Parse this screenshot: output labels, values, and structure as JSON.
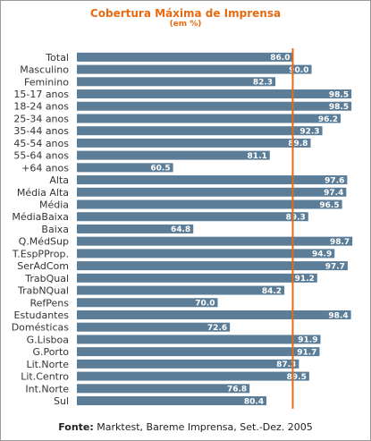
{
  "chart_data": {
    "type": "bar",
    "orientation": "horizontal",
    "title": "Cobertura Máxima de Imprensa",
    "subtitle": "(em %)",
    "categories": [
      "Total",
      "Masculino",
      "Feminino",
      "15-17 anos",
      "18-24 anos",
      "25-34 anos",
      "35-44 anos",
      "45-54 anos",
      "55-64 anos",
      "+64 anos",
      "Alta",
      "Média Alta",
      "Média",
      "MédiaBaixa",
      "Baixa",
      "Q.MédSup",
      "T.EspPProp.",
      "SerAdCom",
      "TrabQual",
      "TrabNQual",
      "RefPens",
      "Estudantes",
      "Domésticas",
      "G.Lisboa",
      "G.Porto",
      "Lit.Norte",
      "Lit.Centro",
      "Int.Norte",
      "Sul"
    ],
    "values": [
      86.0,
      90.0,
      82.3,
      98.5,
      98.5,
      96.2,
      92.3,
      89.8,
      81.1,
      60.5,
      97.6,
      97.4,
      96.5,
      89.3,
      64.8,
      98.7,
      94.9,
      97.7,
      91.2,
      84.2,
      70.0,
      98.4,
      72.6,
      91.9,
      91.7,
      87.3,
      89.5,
      76.8,
      80.4
    ],
    "value_labels": [
      "86.0",
      "90.0",
      "82.3",
      "98.5",
      "98.5",
      "96.2",
      "92.3",
      "89.8",
      "81.1",
      "60.5",
      "97.6",
      "97.4",
      "96.5",
      "89.3",
      "64.8",
      "98.7",
      "94.9",
      "97.7",
      "91.2",
      "84.2",
      "70.0",
      "98.4",
      "72.6",
      "91.9",
      "91.7",
      "87.3",
      "89.5",
      "76.8",
      "80.4"
    ],
    "reference_line": 86.0,
    "xlim": [
      40,
      100
    ],
    "bar_color": "#5b7d98",
    "reference_line_color": "#e86a10",
    "title_color": "#e86a10",
    "grid": false,
    "legend": "none"
  },
  "source": {
    "label": "Fonte:",
    "text": "Marktest, Bareme Imprensa, Set.-Dez. 2005"
  }
}
